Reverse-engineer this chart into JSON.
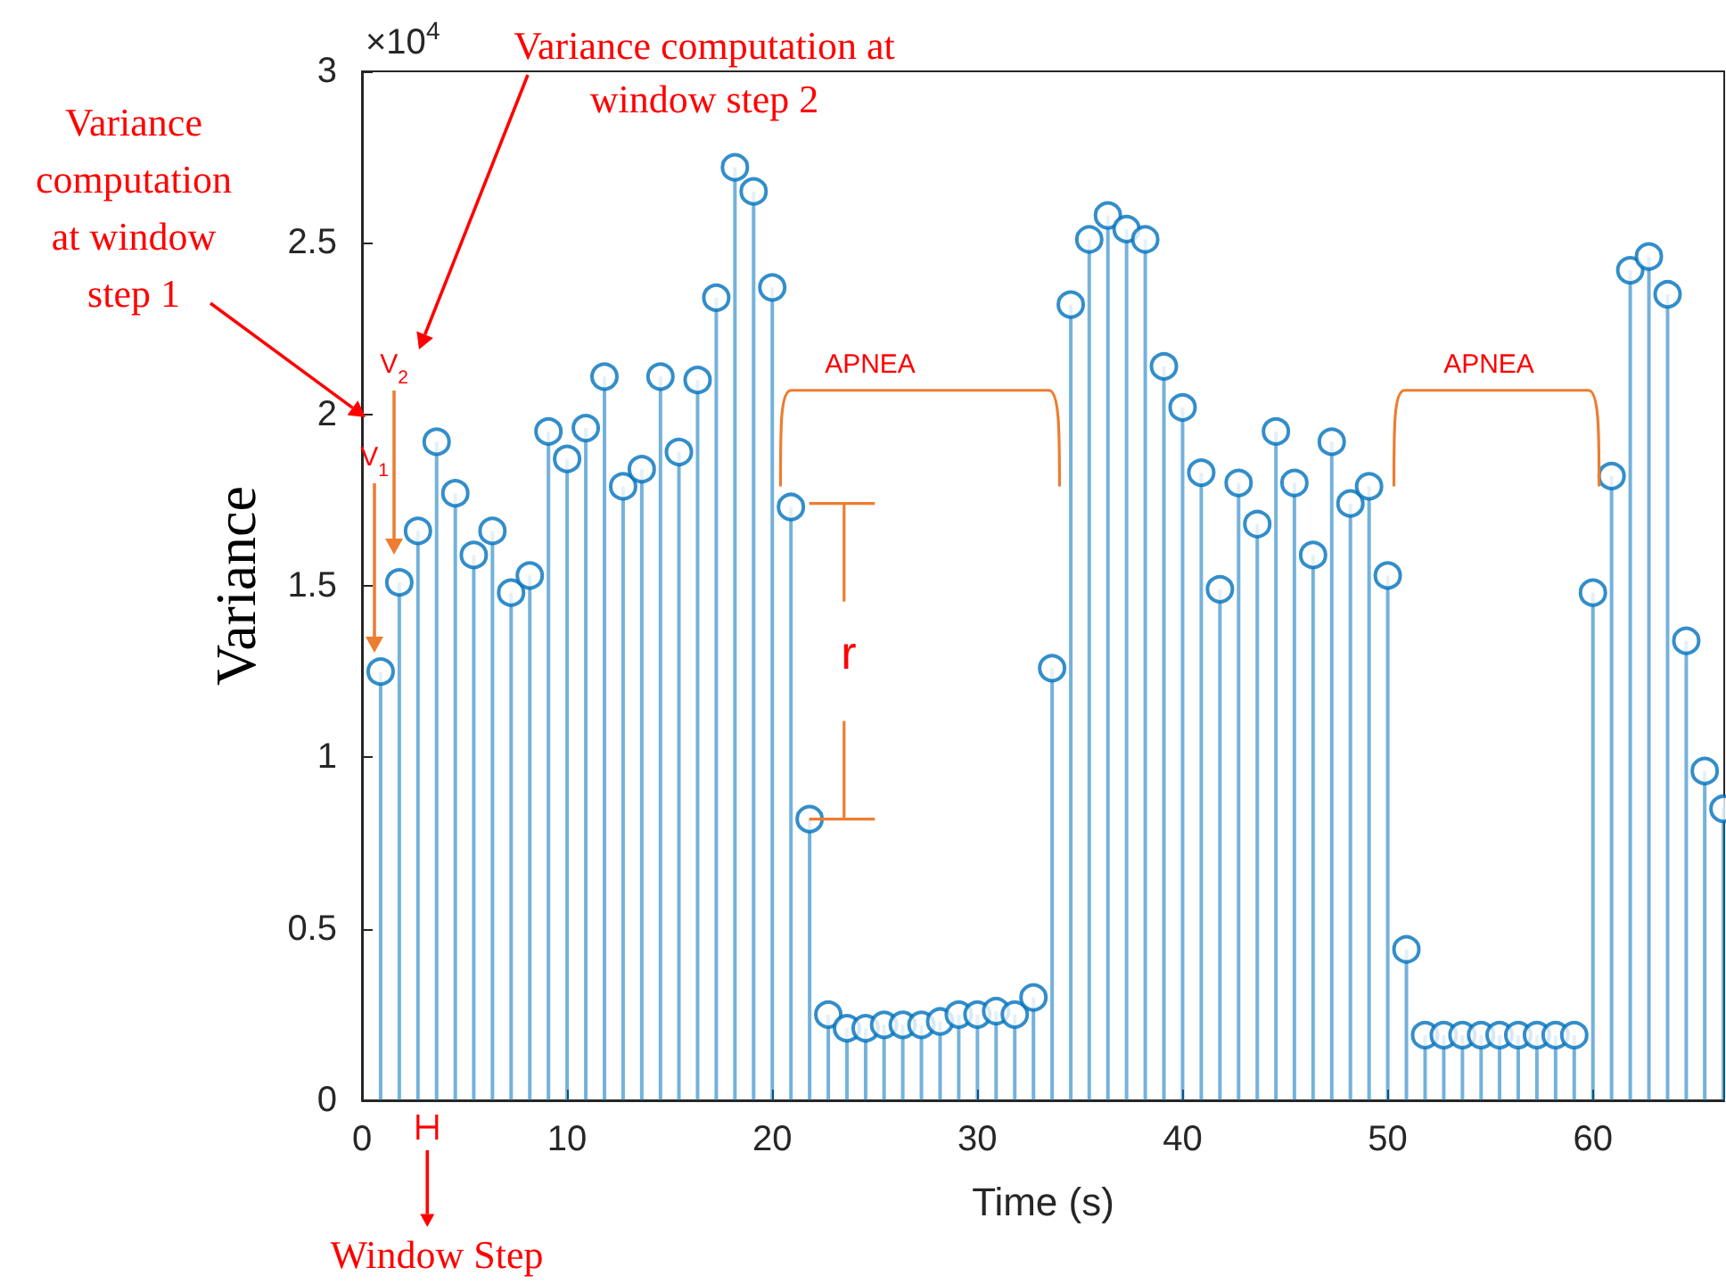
{
  "chart_data": {
    "type": "lollipop",
    "xlabel": "Time (s)",
    "ylabel": "Variance",
    "color": "#0072bd",
    "marker": "circle",
    "grid": false,
    "x": [
      0.91,
      1.82,
      2.73,
      3.64,
      4.55,
      5.45,
      6.36,
      7.27,
      8.18,
      9.09,
      10.0,
      10.91,
      11.82,
      12.73,
      13.64,
      14.55,
      15.45,
      16.36,
      17.27,
      18.18,
      19.09,
      20.0,
      20.91,
      21.82,
      22.73,
      23.64,
      24.55,
      25.45,
      26.36,
      27.27,
      28.18,
      29.09,
      30.0,
      30.91,
      31.82,
      32.73,
      33.64,
      34.55,
      35.45,
      36.36,
      37.27,
      38.18,
      39.09,
      40.0,
      40.91,
      41.82,
      42.73,
      43.64,
      44.55,
      45.45,
      46.36,
      47.27,
      48.18,
      49.09,
      50.0,
      50.91,
      51.82,
      52.73,
      53.64,
      54.55,
      55.45,
      56.36,
      57.27,
      58.18,
      59.09,
      60.0,
      60.91,
      61.82,
      62.73,
      63.64,
      64.55,
      65.45,
      66.36
    ],
    "values": [
      1.25,
      1.51,
      1.66,
      1.92,
      1.77,
      1.59,
      1.66,
      1.48,
      1.53,
      1.95,
      1.87,
      1.96,
      2.11,
      1.79,
      1.84,
      2.11,
      1.89,
      2.1,
      2.34,
      2.72,
      2.65,
      2.37,
      1.73,
      0.82,
      0.25,
      0.21,
      0.21,
      0.22,
      0.22,
      0.22,
      0.23,
      0.25,
      0.25,
      0.26,
      0.25,
      0.3,
      1.26,
      2.32,
      2.51,
      2.58,
      2.54,
      2.51,
      2.14,
      2.02,
      1.83,
      1.49,
      1.8,
      1.68,
      1.95,
      1.8,
      1.59,
      1.92,
      1.74,
      1.79,
      1.53,
      0.44,
      0.19,
      0.19,
      0.19,
      0.19,
      0.19,
      0.19,
      0.19,
      0.19,
      0.19,
      1.48,
      1.82,
      2.42,
      2.46,
      2.35,
      1.34,
      0.96,
      0.85
    ],
    "xlim": [
      0,
      66.4
    ],
    "xticks": [
      0,
      10,
      20,
      30,
      40,
      50,
      60
    ],
    "ylim": [
      0,
      3
    ],
    "yticks": [
      0,
      0.5,
      1,
      1.5,
      2,
      2.5,
      3
    ],
    "annotations": [
      "×10$^{4}$",
      "Variance computation at window step 1",
      "Variance computation at window step 2",
      "V$_{1}$",
      "V$_{2}$",
      "APNEA",
      "APNEA",
      "r",
      "Window Step"
    ]
  }
}
